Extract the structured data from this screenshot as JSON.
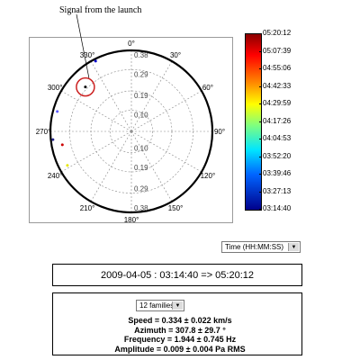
{
  "annotation": "Signal from the launch",
  "chart_data": {
    "type": "scatter",
    "polar": true,
    "angle_ticks": [
      {
        "label": "0°",
        "deg": 0
      },
      {
        "label": "30°",
        "deg": 30
      },
      {
        "label": "60°",
        "deg": 60
      },
      {
        "label": "90°",
        "deg": 90
      },
      {
        "label": "120°",
        "deg": 120
      },
      {
        "label": "150°",
        "deg": 150
      },
      {
        "label": "180°",
        "deg": 180
      },
      {
        "label": "210°",
        "deg": 210
      },
      {
        "label": "240°",
        "deg": 240
      },
      {
        "label": "270°",
        "deg": 270
      },
      {
        "label": "300°",
        "deg": 300
      },
      {
        "label": "330°",
        "deg": 330
      }
    ],
    "radius_ticks": [
      0.1,
      0.19,
      0.29,
      0.38
    ],
    "points": [
      {
        "azimuth": 333,
        "speed": 0.37,
        "color": "#0000cc"
      },
      {
        "azimuth": 314,
        "speed": 0.3,
        "color": "#000000"
      },
      {
        "azimuth": 285,
        "speed": 0.36,
        "color": "#5a5aff"
      },
      {
        "azimuth": 264,
        "speed": 0.37,
        "color": "#222288"
      },
      {
        "azimuth": 259,
        "speed": 0.33,
        "color": "#cc0000"
      },
      {
        "azimuth": 242,
        "speed": 0.34,
        "color": "#e6e600"
      }
    ],
    "highlight": {
      "azimuth": 314,
      "speed": 0.3,
      "color": "#cc2222"
    },
    "colorbar": {
      "labels": [
        "05:20:12",
        "05:07:39",
        "04:55:06",
        "04:42:33",
        "04:29:59",
        "04:17:26",
        "04:04:53",
        "03:52:20",
        "03:39:46",
        "03:27:13",
        "03:14:40"
      ]
    }
  },
  "controls": {
    "time_format": "Time (HH:MM:SS)",
    "families": "12 families"
  },
  "time_range": "2009-04-05 : 03:14:40 => 05:20:12",
  "stats": {
    "speed": "Speed = 0.334 ± 0.022 km/s",
    "azimuth": "Azimuth = 307.8 ± 29.7 °",
    "frequency": "Frequency = 1.944 ± 0.745 Hz",
    "amplitude": "Amplitude = 0.009 ± 0.004 Pa RMS"
  }
}
